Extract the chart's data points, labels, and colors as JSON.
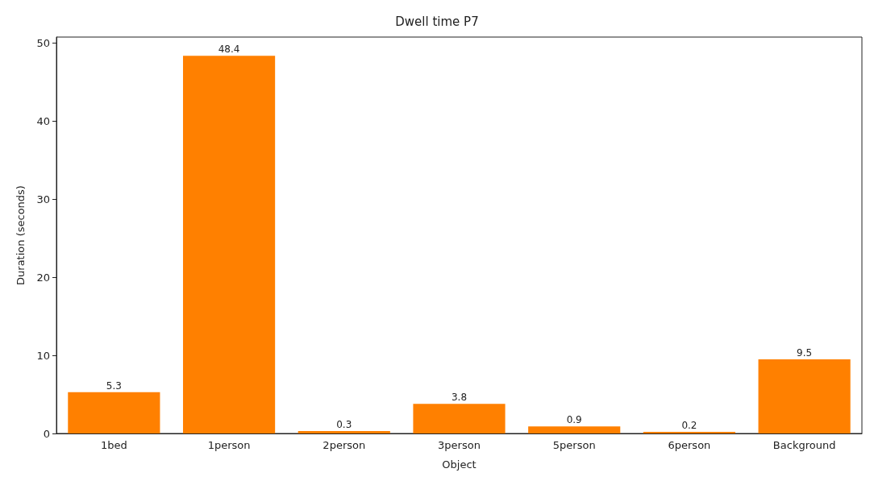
{
  "chart_data": {
    "type": "bar",
    "title": "Dwell time P7",
    "xlabel": "Object",
    "ylabel": "Duration (seconds)",
    "categories": [
      "1bed",
      "1person",
      "2person",
      "3person",
      "5person",
      "6person",
      "Background"
    ],
    "values": [
      5.3,
      48.4,
      0.3,
      3.8,
      0.9,
      0.2,
      9.5
    ],
    "color": "#ff8000",
    "ylim": [
      0,
      50.8
    ],
    "yticks": [
      0,
      10,
      20,
      30,
      40,
      50
    ],
    "data_labels": true,
    "grid": false
  }
}
